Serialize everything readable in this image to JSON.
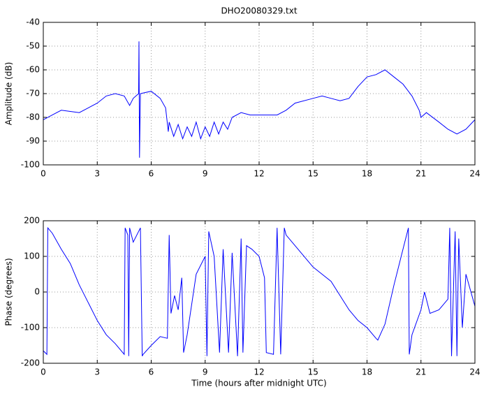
{
  "chart_data": [
    {
      "type": "line",
      "title": "DHO20080329.txt",
      "ylabel": "Amplitude (dB)",
      "color": "#0000ff",
      "grid": true,
      "xlim": [
        0,
        24
      ],
      "xticks": [
        0,
        3,
        6,
        9,
        12,
        15,
        18,
        21,
        24
      ],
      "ylim": [
        -100,
        -40
      ],
      "yticks": [
        -100,
        -90,
        -80,
        -70,
        -60,
        -50,
        -40
      ],
      "x": [
        0,
        0.5,
        1,
        1.5,
        2,
        2.5,
        3,
        3.5,
        4,
        4.5,
        4.8,
        5,
        5.3,
        5.32,
        5.35,
        5.4,
        6,
        6.5,
        6.8,
        6.95,
        7,
        7.25,
        7.5,
        7.75,
        8,
        8.25,
        8.5,
        8.75,
        9,
        9.25,
        9.5,
        9.75,
        10,
        10.25,
        10.5,
        11,
        11.5,
        12,
        12.5,
        13,
        13.5,
        14,
        15,
        15.5,
        16,
        16.5,
        17,
        17.5,
        18,
        18.5,
        19,
        19.5,
        20,
        20.5,
        20.9,
        21,
        21.3,
        22,
        22.5,
        23,
        23.5,
        24
      ],
      "values": [
        -81,
        -79,
        -77,
        -77.5,
        -78,
        -76,
        -74,
        -71,
        -70,
        -71,
        -75,
        -72,
        -70,
        -48,
        -97,
        -70,
        -69,
        -72,
        -76,
        -86,
        -82,
        -88,
        -83,
        -89,
        -84,
        -88,
        -82,
        -89,
        -84,
        -88,
        -82,
        -87,
        -82,
        -85,
        -80,
        -78,
        -79,
        -79,
        -79,
        -79,
        -77,
        -74,
        -72,
        -71,
        -72,
        -73,
        -72,
        -67,
        -63,
        -62,
        -60,
        -63,
        -66,
        -71,
        -77,
        -80,
        -78,
        -82,
        -85,
        -87,
        -85,
        -81
      ]
    },
    {
      "type": "line",
      "ylabel": "Phase (degrees)",
      "xlabel": "Time (hours after midnight UTC)",
      "color": "#0000ff",
      "grid": true,
      "xlim": [
        0,
        24
      ],
      "xticks": [
        0,
        3,
        6,
        9,
        12,
        15,
        18,
        21,
        24
      ],
      "ylim": [
        -200,
        200
      ],
      "yticks": [
        -200,
        -100,
        0,
        100,
        200
      ],
      "x": [
        0,
        0.2,
        0.25,
        0.5,
        1,
        1.5,
        2,
        2.5,
        3,
        3.5,
        4,
        4.5,
        4.55,
        4.7,
        4.75,
        4.8,
        5,
        5.4,
        5.5,
        5.55,
        6,
        6.5,
        6.9,
        7,
        7.1,
        7.3,
        7.5,
        7.7,
        7.8,
        8,
        8.5,
        9,
        9.1,
        9.2,
        9.5,
        9.8,
        10,
        10.3,
        10.5,
        10.8,
        11,
        11.1,
        11.3,
        11.6,
        12,
        12.3,
        12.4,
        12.8,
        13,
        13.2,
        13.4,
        13.5,
        14,
        15,
        15.5,
        16,
        16.5,
        17,
        17.5,
        18,
        18.5,
        18.6,
        19,
        19.5,
        20,
        20.3,
        20.35,
        20.5,
        21,
        21.2,
        21.5,
        22,
        22.5,
        22.6,
        22.7,
        22.9,
        23,
        23.1,
        23.3,
        23.5,
        24
      ],
      "values": [
        -165,
        -175,
        180,
        165,
        120,
        80,
        20,
        -30,
        -80,
        -120,
        -145,
        -175,
        180,
        160,
        -180,
        180,
        140,
        180,
        -180,
        -175,
        -150,
        -125,
        -130,
        160,
        -60,
        -10,
        -50,
        40,
        -170,
        -120,
        50,
        100,
        -180,
        170,
        100,
        -170,
        120,
        -170,
        110,
        -180,
        150,
        -170,
        130,
        120,
        100,
        40,
        -170,
        -175,
        180,
        -175,
        180,
        160,
        130,
        70,
        50,
        30,
        -10,
        -50,
        -80,
        -100,
        -130,
        -135,
        -90,
        20,
        120,
        180,
        -175,
        -120,
        -50,
        0,
        -60,
        -50,
        -20,
        180,
        -180,
        170,
        -180,
        150,
        -100,
        50,
        -40
      ]
    }
  ]
}
